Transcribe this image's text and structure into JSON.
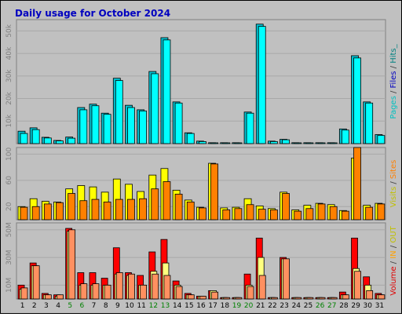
{
  "chart_data": {
    "type": "bar",
    "title": "Daily usage for October 2024",
    "categories": [
      "1",
      "2",
      "3",
      "4",
      "5",
      "6",
      "7",
      "8",
      "9",
      "10",
      "11",
      "12",
      "13",
      "14",
      "15",
      "16",
      "17",
      "18",
      "19",
      "20",
      "21",
      "22",
      "23",
      "24",
      "25",
      "26",
      "27",
      "28",
      "29",
      "30",
      "31"
    ],
    "weekend_days": [
      5,
      6,
      12,
      13,
      19,
      20,
      26,
      27
    ],
    "panels": [
      {
        "id": "hits",
        "ylim": [
          0,
          55000
        ],
        "yticks": [
          {
            "v": 10000,
            "label": "10k"
          },
          {
            "v": 20000,
            "label": "20k"
          },
          {
            "v": 30000,
            "label": "30k"
          },
          {
            "v": 40000,
            "label": "40k"
          },
          {
            "v": 50000,
            "label": "50k"
          }
        ],
        "series": [
          {
            "color": "#00c0d0",
            "values": [
              5500,
              7000,
              2800,
              1400,
              2900,
              16000,
              17500,
              13500,
              29000,
              17000,
              15000,
              32000,
              47000,
              18500,
              4800,
              1100,
              400,
              400,
              400,
              14000,
              53000,
              1100,
              1900,
              400,
              400,
              400,
              400,
              6500,
              39000,
              18500,
              4000
            ]
          },
          {
            "color": "#00ffff",
            "values": [
              4500,
              6200,
              2500,
              1200,
              2400,
              15000,
              16800,
              13000,
              28000,
              16000,
              14500,
              31000,
              46000,
              18000,
              4500,
              900,
              300,
              300,
              300,
              13500,
              52000,
              900,
              1700,
              300,
              300,
              300,
              300,
              6000,
              38000,
              18000,
              3600
            ]
          }
        ],
        "right_label": [
          {
            "text": "Pages",
            "color": "#00c0c0"
          },
          {
            "text": " / ",
            "color": "#404040"
          },
          {
            "text": "Files",
            "color": "#0000c0"
          },
          {
            "text": " / ",
            "color": "#404040"
          },
          {
            "text": "Hits",
            "color": "#008080"
          },
          {
            "text": "_",
            "color": "#008080"
          }
        ]
      },
      {
        "id": "visits",
        "ylim": [
          0,
          110
        ],
        "yticks": [
          {
            "v": 20,
            "label": "20"
          },
          {
            "v": 60,
            "label": "60"
          },
          {
            "v": 100,
            "label": "100"
          }
        ],
        "series": [
          {
            "color": "#ffff00",
            "values": [
              20,
              32,
              28,
              27,
              47,
              52,
              50,
              42,
              62,
              54,
              43,
              68,
              78,
              45,
              30,
              19,
              86,
              18,
              19,
              32,
              21,
              17,
              42,
              15,
              22,
              25,
              23,
              14,
              94,
              22,
              25
            ]
          },
          {
            "color": "#ff8000",
            "values": [
              19,
              20,
              24,
              26,
              40,
              29,
              31,
              27,
              31,
              31,
              32,
              47,
              58,
              39,
              27,
              18,
              85,
              15,
              17,
              23,
              16,
              15,
              40,
              13,
              17,
              24,
              20,
              13,
              110,
              19,
              24
            ]
          }
        ],
        "right_label": [
          {
            "text": "Visits",
            "color": "#c0c000"
          },
          {
            "text": " / ",
            "color": "#404040"
          },
          {
            "text": "Sites",
            "color": "#ff8000"
          }
        ]
      },
      {
        "id": "volume",
        "ylim": [
          0,
          55
        ],
        "yticks": [
          {
            "v": 10,
            "label": "10M"
          },
          {
            "v": 30,
            "label": "30M"
          },
          {
            "v": 50,
            "label": "50M"
          }
        ],
        "series": [
          {
            "color": "#ff0000",
            "values": [
              10,
              26,
              4,
              3,
              51,
              19,
              19,
              15,
              37,
              19,
              17,
              34,
              43,
              13,
              4,
              2,
              6,
              1,
              1,
              18,
              44,
              1,
              30,
              1,
              1,
              1,
              1,
              5,
              44,
              16,
              4
            ]
          },
          {
            "color": "#ffff80",
            "values": [
              7,
              24,
              3,
              2,
              49,
              10,
              10,
              10,
              18,
              17,
              10,
              20,
              26,
              10,
              3,
              2,
              6,
              1,
              1,
              10,
              30,
              1,
              29,
              1,
              1,
              1,
              1,
              3,
              22,
              10,
              3
            ]
          },
          {
            "color": "#ff9060",
            "values": [
              8,
              24,
              3,
              3,
              50,
              11,
              11,
              10,
              19,
              18,
              10,
              18,
              17,
              9,
              3,
              2,
              5,
              1,
              1,
              9,
              17,
              1,
              29,
              1,
              1,
              1,
              1,
              3,
              20,
              6,
              3
            ]
          }
        ],
        "right_label": [
          {
            "text": "Volume",
            "color": "#e00000"
          },
          {
            "text": " / ",
            "color": "#404040"
          },
          {
            "text": "IN",
            "color": "#ffa000"
          },
          {
            "text": " / ",
            "color": "#404040"
          },
          {
            "text": "OUT",
            "color": "#c0c000"
          }
        ]
      }
    ]
  }
}
